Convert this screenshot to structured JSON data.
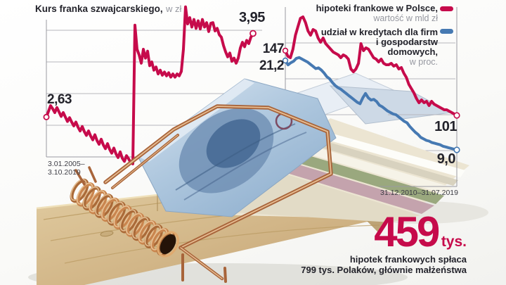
{
  "title": {
    "main": "Kurs franka szwajcarskiego,",
    "unit": "w zł"
  },
  "left_chart": {
    "start_value": "2,63",
    "end_value": "3,95",
    "date_line1": "3.01.2005–",
    "date_line2": "3.10.2019",
    "line_color": "#c60b4b"
  },
  "right_chart": {
    "legend": {
      "series1_label": "hipoteki frankowe w Polsce,",
      "series1_sub": "wartość w mld zł",
      "series2_label1": "udział w kredytach dla firm",
      "series2_label2": "i gospodarstw",
      "series2_label3": "domowych,",
      "series2_sub": "w proc.",
      "series1_color": "#c60b4b",
      "series2_color": "#4679b2"
    },
    "red_start_value": "147",
    "blue_start_value": "21,2",
    "red_end_value": "101",
    "blue_end_value": "9,0",
    "date_range": "31.12.2010–31.07.2019"
  },
  "callout": {
    "number": "459",
    "unit": "tys.",
    "line1": "hipotek frankowych spłaca",
    "line2": "799 tys. Polaków, głównie małżeństwa",
    "color": "#c60b4b"
  },
  "chart_data": [
    {
      "type": "line",
      "name": "Kurs franka szwajcarskiego (zł)",
      "x_range": [
        "3.01.2005",
        "3.10.2019"
      ],
      "first_label": "2,63",
      "last_label": "3,95",
      "gridline_values": [
        2.0,
        2.5,
        3.0,
        3.5,
        4.0
      ],
      "ylim": [
        1.85,
        4.45
      ],
      "color": "#c60b4b",
      "values": [
        2.63,
        2.72,
        2.81,
        2.76,
        2.7,
        2.78,
        2.71,
        2.64,
        2.7,
        2.63,
        2.56,
        2.62,
        2.55,
        2.49,
        2.55,
        2.47,
        2.41,
        2.48,
        2.4,
        2.34,
        2.41,
        2.33,
        2.27,
        2.35,
        2.26,
        2.2,
        2.28,
        2.19,
        2.13,
        2.21,
        2.12,
        2.06,
        2.14,
        2.05,
        1.99,
        2.08,
        1.98,
        1.93,
        2.02,
        1.97,
        1.91,
        1.89,
        4.08,
        3.7,
        3.61,
        3.48,
        3.7,
        3.56,
        3.67,
        3.44,
        3.5,
        3.37,
        3.42,
        3.31,
        3.37,
        3.29,
        3.34,
        3.28,
        3.33,
        3.26,
        3.31,
        3.26,
        3.31,
        3.28,
        3.35,
        3.7,
        4.37,
        4.1,
        4.2,
        4.05,
        4.17,
        4.03,
        4.15,
        4.02,
        4.17,
        4.05,
        4.12,
        3.98,
        4.11,
        4.12,
        3.99,
        4.03,
        3.93,
        3.89,
        3.76,
        3.66,
        3.58,
        3.64,
        3.51,
        3.56,
        3.48,
        3.56,
        3.72,
        3.81,
        3.74,
        3.84,
        3.79,
        3.89,
        3.95
      ]
    },
    {
      "type": "line",
      "name": "hipoteki frankowe w Polsce (mld zł)",
      "x_range": [
        "31.12.2010",
        "31.07.2019"
      ],
      "first_label": "147",
      "last_label": "101",
      "color": "#c60b4b",
      "values": [
        147,
        143,
        142,
        148,
        158,
        164,
        170,
        171,
        167,
        161,
        158,
        162,
        161,
        156,
        153,
        156,
        152,
        150,
        148,
        146,
        145,
        144,
        142,
        144,
        143,
        141,
        134,
        132,
        134,
        138,
        152,
        147,
        149,
        148,
        145,
        142,
        141,
        139,
        141,
        138,
        137,
        137,
        138,
        136,
        137,
        134,
        135,
        131,
        128,
        123,
        120,
        117,
        113,
        110,
        112,
        110,
        111,
        108,
        111,
        109,
        108,
        107,
        106,
        105,
        105,
        104,
        103,
        102,
        101
      ]
    },
    {
      "type": "line",
      "name": "udział w kredytach dla firm i gospodarstw domowych (proc.)",
      "x_range": [
        "31.12.2010",
        "31.07.2019"
      ],
      "first_label": "21,2",
      "last_label": "9,0",
      "color": "#4679b2",
      "values": [
        21.2,
        20.6,
        20.9,
        21.1,
        21.5,
        21.6,
        21.4,
        21.2,
        21.0,
        20.7,
        20.4,
        20.1,
        20.2,
        19.9,
        19.5,
        19.0,
        18.7,
        18.2,
        17.8,
        17.5,
        17.3,
        17.0,
        16.7,
        16.4,
        16.1,
        15.8,
        15.5,
        15.3,
        16.1,
        16.7,
        16.1,
        15.8,
        15.9,
        15.6,
        15.1,
        14.9,
        14.6,
        14.3,
        14.1,
        13.9,
        13.8,
        13.5,
        13.2,
        12.9,
        12.7,
        12.2,
        11.8,
        11.4,
        11.1,
        10.7,
        10.5,
        10.3,
        10.2,
        10.0,
        9.9,
        9.8,
        9.7,
        9.5,
        9.4,
        9.3,
        9.2,
        9.1,
        9.0
      ]
    }
  ]
}
